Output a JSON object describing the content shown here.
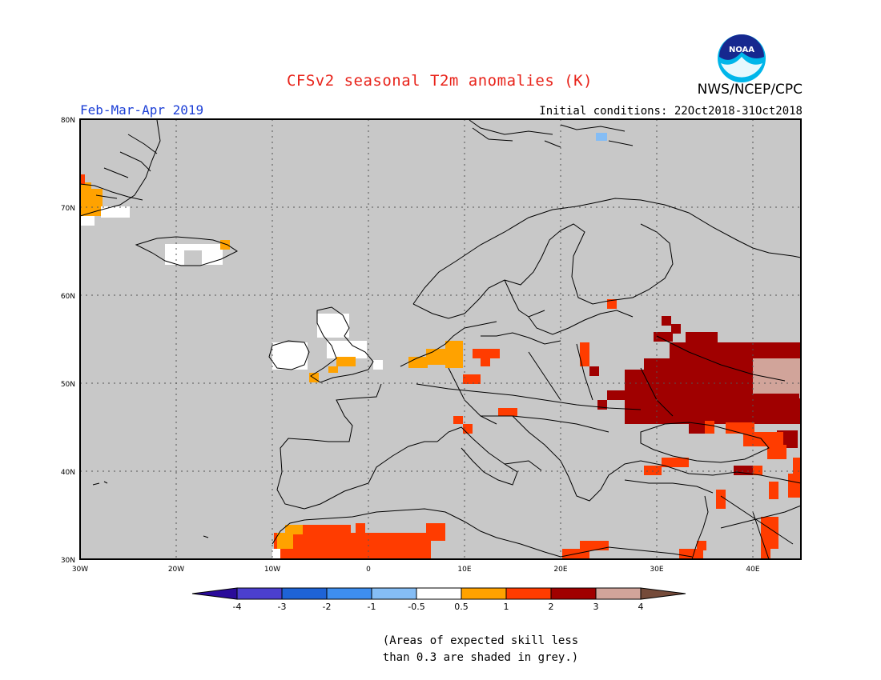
{
  "header": {
    "title": "CFSv2 seasonal T2m anomalies (K)",
    "organization": "NWS/NCEP/CPC",
    "period": "Feb-Mar-Apr 2019",
    "initial_conditions": "Initial conditions: 22Oct2018-31Oct2018",
    "logo_text": "NOAA"
  },
  "map": {
    "projection": "lat-lon",
    "lat_labels": [
      "80N",
      "70N",
      "60N",
      "50N",
      "40N",
      "30N"
    ],
    "lon_labels": [
      "30W",
      "20W",
      "10W",
      "0",
      "10E",
      "20E",
      "30E",
      "40E"
    ],
    "no_skill_color": "#c8c8c8",
    "coastline_color": "#000000"
  },
  "colorbar": {
    "tick_labels": [
      "-4",
      "-3",
      "-2",
      "-1",
      "-0.5",
      "0.5",
      "1",
      "2",
      "3",
      "4"
    ],
    "bins": [
      {
        "range": "< -4",
        "color": "#2a0b9a"
      },
      {
        "range": "-4 to -3",
        "color": "#4b3fcf"
      },
      {
        "range": "-3 to -2",
        "color": "#1e63d6"
      },
      {
        "range": "-2 to -1",
        "color": "#3e8eef"
      },
      {
        "range": "-1 to -0.5",
        "color": "#85bdf5"
      },
      {
        "range": "-0.5 to 0.5",
        "color": "#ffffff"
      },
      {
        "range": "0.5 to 1",
        "color": "#ffa200"
      },
      {
        "range": "1 to 2",
        "color": "#ff3c00"
      },
      {
        "range": "2 to 3",
        "color": "#a00000"
      },
      {
        "range": "3 to 4",
        "color": "#d1a49a"
      },
      {
        "range": "> 4",
        "color": "#754b3a"
      }
    ]
  },
  "footnote": {
    "line1": "(Areas of expected skill less",
    "line2": "than 0.3 are shaded in grey.)"
  },
  "anomaly_regions": [
    {
      "name": "western-russia-ukraine",
      "category": "2 to 3"
    },
    {
      "name": "southern-russia",
      "category": "3 to 4"
    },
    {
      "name": "north-africa",
      "category": "1 to 2"
    },
    {
      "name": "morocco-coast",
      "category": "0.5 to 1"
    },
    {
      "name": "low-countries",
      "category": "0.5 to 1"
    },
    {
      "name": "british-isles",
      "category": "-0.5 to 0.5"
    },
    {
      "name": "iceland",
      "category": "-0.5 to 0.5"
    },
    {
      "name": "greenland-east-coast",
      "category": "0.5 to 1"
    },
    {
      "name": "svalbard-east",
      "category": "-1 to -0.5"
    }
  ]
}
